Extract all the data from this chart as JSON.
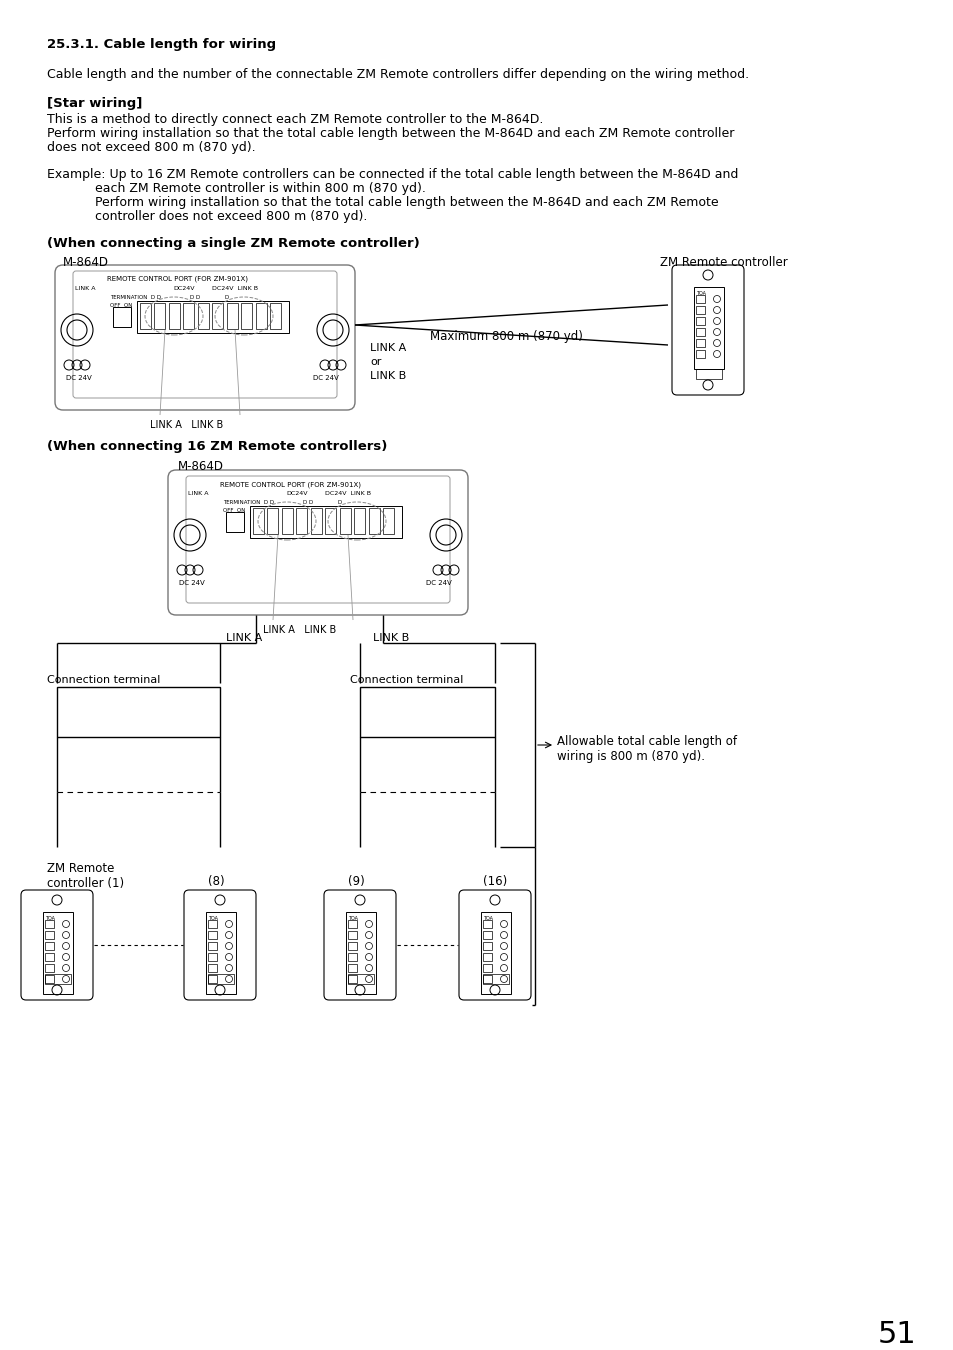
{
  "bg_color": "#ffffff",
  "page_number": "51",
  "title": "25.3.1. Cable length for wiring",
  "para1": "Cable length and the number of the connectable ZM Remote controllers differ depending on the wiring method.",
  "section_title": "[Star wiring]",
  "para2_line1": "This is a method to directly connect each ZM Remote controller to the M-864D.",
  "para2_line2": "Perform wiring installation so that the total cable length between the M-864D and each ZM Remote controller",
  "para2_line3": "does not exceed 800 m (870 yd).",
  "example_line1": "Example: Up to 16 ZM Remote controllers can be connected if the total cable length between the M-864D and",
  "example_line2": "            each ZM Remote controller is within 800 m (870 yd).",
  "example_line3": "            Perform wiring installation so that the total cable length between the M-864D and each ZM Remote",
  "example_line4": "            controller does not exceed 800 m (870 yd).",
  "diagram1_title": "(When connecting a single ZM Remote controller)",
  "m864d_label": "M-864D",
  "zm_remote_label": "ZM Remote controller",
  "max_cable_label": "Maximum 800 m (870 yd)",
  "diagram2_title": "(When connecting 16 ZM Remote controllers)",
  "conn_terminal_label": "Connection terminal",
  "allowable_label": "Allowable total cable length of\nwiring is 800 m (870 yd).",
  "zm_remote_ctrl1": "ZM Remote\ncontroller (1)",
  "zm_ctrl_8": "(8)",
  "zm_ctrl_9": "(9)",
  "zm_ctrl_16": "(16)"
}
